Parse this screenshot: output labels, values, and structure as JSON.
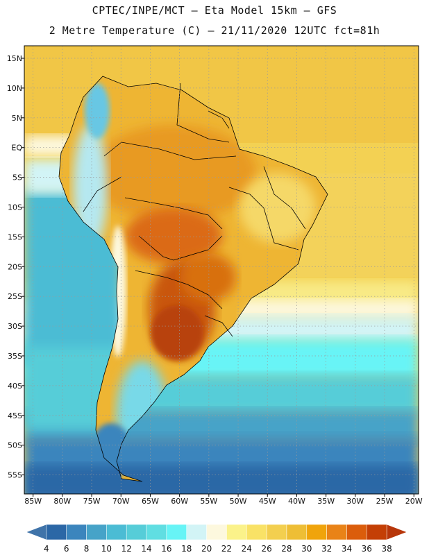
{
  "header": {
    "line1": "CPTEC/INPE/MCT –  Eta Model 15km – GFS",
    "line2": "2 Metre Temperature (C) – 21/11/2020 12UTC fct=81h"
  },
  "axes": {
    "lat_labels": [
      "15N",
      "10N",
      "5N",
      "EQ",
      "5S",
      "10S",
      "15S",
      "20S",
      "25S",
      "30S",
      "35S",
      "40S",
      "45S",
      "50S",
      "55S"
    ],
    "lat_values": [
      15,
      10,
      5,
      0,
      -5,
      -10,
      -15,
      -20,
      -25,
      -30,
      -35,
      -40,
      -45,
      -50,
      -55
    ],
    "lon_labels": [
      "85W",
      "80W",
      "75W",
      "70W",
      "65W",
      "60W",
      "55W",
      "50W",
      "45W",
      "40W",
      "35W",
      "30W",
      "25W",
      "20W"
    ],
    "lon_values": [
      -85,
      -80,
      -75,
      -70,
      -65,
      -60,
      -55,
      -50,
      -45,
      -40,
      -35,
      -30,
      -25,
      -20
    ],
    "lat_range": [
      -58.2,
      17.1
    ],
    "lon_range": [
      -86.5,
      -19.2
    ]
  },
  "colorbar": {
    "labels": [
      "4",
      "6",
      "8",
      "10",
      "12",
      "14",
      "16",
      "18",
      "20",
      "22",
      "24",
      "26",
      "28",
      "30",
      "32",
      "34",
      "36",
      "38"
    ],
    "colors": [
      "#3f73a9",
      "#2b67a6",
      "#3b85bd",
      "#46a3c8",
      "#4bbcd4",
      "#56cdd8",
      "#60dee2",
      "#67f4f6",
      "#d2f4f6",
      "#fdf8de",
      "#fbf28a",
      "#f9e266",
      "#f3cf4f",
      "#eebe35",
      "#f0a40b",
      "#e98317",
      "#db5d0b",
      "#c43f05",
      "#b7360a"
    ]
  }
}
